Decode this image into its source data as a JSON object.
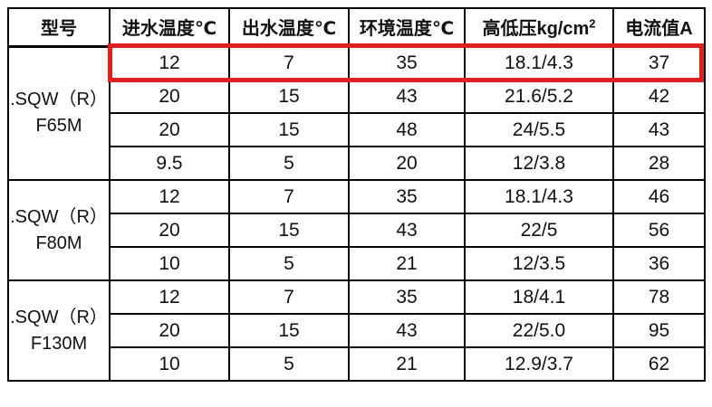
{
  "colors": {
    "border": "#000000",
    "text": "#111111",
    "background": "#ffffff",
    "highlight": "#e02020"
  },
  "table": {
    "columns": [
      {
        "label": "型号"
      },
      {
        "label": "进水温度℃"
      },
      {
        "label": "出水温度℃"
      },
      {
        "label": "环境温度℃"
      },
      {
        "label": "高低压kg/cm",
        "sup": "2"
      },
      {
        "label": "电流值A"
      }
    ],
    "groups": [
      {
        "model_lines": [
          ".SQW（R）",
          "F65M"
        ],
        "rows": [
          [
            "12",
            "7",
            "35",
            "18.1/4.3",
            "37"
          ],
          [
            "20",
            "15",
            "43",
            "21.6/5.2",
            "42"
          ],
          [
            "20",
            "15",
            "48",
            "24/5.5",
            "43"
          ],
          [
            "9.5",
            "5",
            "20",
            "12/3.8",
            "28"
          ]
        ]
      },
      {
        "model_lines": [
          ".SQW（R）",
          "F80M"
        ],
        "rows": [
          [
            "12",
            "7",
            "35",
            "18.1/4.3",
            "46"
          ],
          [
            "20",
            "15",
            "43",
            "22/5",
            "56"
          ],
          [
            "10",
            "5",
            "21",
            "12/3.5",
            "36"
          ]
        ]
      },
      {
        "model_lines": [
          ".SQW（R）",
          "F130M"
        ],
        "rows": [
          [
            "12",
            "7",
            "35",
            "18/4.1",
            "78"
          ],
          [
            "20",
            "15",
            "43",
            "22/5.0",
            "95"
          ],
          [
            "10",
            "5",
            "21",
            "12.9/3.7",
            "62"
          ]
        ]
      }
    ],
    "highlighted_row": {
      "group_index": 0,
      "row_index": 0
    }
  }
}
